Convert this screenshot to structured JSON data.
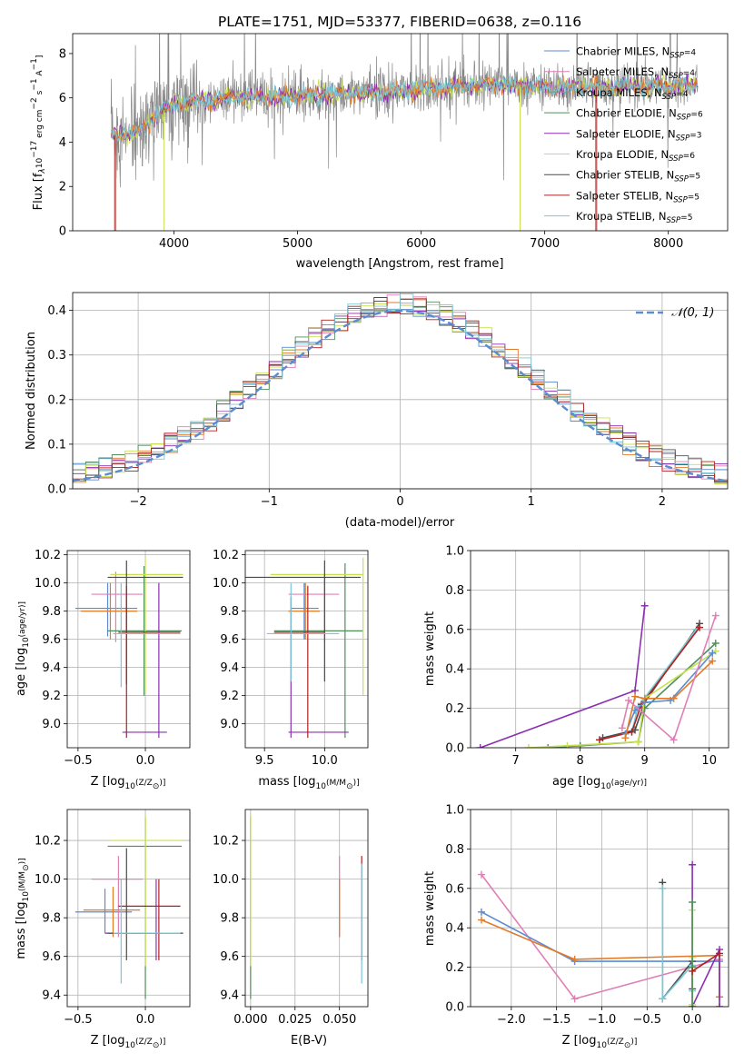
{
  "colors": {
    "chabrier_miles": "#5b8bd0",
    "salpeter_miles": "#e07fb5",
    "kroupa_miles": "#e07b2c",
    "chabrier_elodie": "#4f8f5a",
    "salpeter_elodie": "#8b2fb0",
    "kroupa_elodie": "#c8e04f",
    "chabrier_stelib": "#4a4a4a",
    "salpeter_stelib": "#b02020",
    "kroupa_stelib": "#78c8d8",
    "grid": "#b0b0b0",
    "gauss": "#5b8bd0"
  },
  "chart_data": [
    {
      "id": "spectrum",
      "type": "line",
      "title": "PLATE=1751, MJD=53377, FIBERID=0638, z=0.116",
      "xlabel": "wavelength [Angstrom, rest frame]",
      "ylabel_parts": [
        "Flux [f",
        "λ",
        "10",
        "−17",
        " erg cm",
        "−2",
        " s",
        "−1",
        " A",
        "−1",
        "]"
      ],
      "xlim": [
        3180,
        8480
      ],
      "ylim": [
        0,
        8.9
      ],
      "xticks": [
        4000,
        5000,
        6000,
        7000,
        8000
      ],
      "yticks": [
        0,
        2,
        4,
        6,
        8
      ],
      "x_range": [
        3490,
        8240
      ],
      "continuum": [
        [
          3490,
          4.3
        ],
        [
          3700,
          4.4
        ],
        [
          3800,
          4.9
        ],
        [
          3950,
          5.6
        ],
        [
          4050,
          5.8
        ],
        [
          4500,
          6.0
        ],
        [
          5000,
          6.1
        ],
        [
          5500,
          6.2
        ],
        [
          6000,
          6.4
        ],
        [
          6500,
          6.6
        ],
        [
          7000,
          6.5
        ],
        [
          7500,
          6.5
        ],
        [
          8000,
          6.6
        ],
        [
          8240,
          6.6
        ]
      ],
      "legend": [
        {
          "label": "Chabrier MILES, N",
          "sub": "SSP",
          "tail": "=4",
          "color_key": "chabrier_miles"
        },
        {
          "label": "Salpeter MILES, N",
          "sub": "SSP",
          "tail": "=4",
          "color_key": "salpeter_miles"
        },
        {
          "label": "Kroupa MILES, N",
          "sub": "SSP",
          "tail": "=4",
          "color_key": "kroupa_miles"
        },
        {
          "label": "Chabrier ELODIE, N",
          "sub": "SSP",
          "tail": "=6",
          "color_key": "chabrier_elodie"
        },
        {
          "label": "Salpeter ELODIE, N",
          "sub": "SSP",
          "tail": "=3",
          "color_key": "salpeter_elodie"
        },
        {
          "label": "Kroupa ELODIE, N",
          "sub": "SSP",
          "tail": "=6",
          "color_key": "kroupa_elodie"
        },
        {
          "label": "Chabrier STELIB, N",
          "sub": "SSP",
          "tail": "=5",
          "color_key": "chabrier_stelib"
        },
        {
          "label": "Salpeter STELIB, N",
          "sub": "SSP",
          "tail": "=5",
          "color_key": "salpeter_stelib"
        },
        {
          "label": "Kroupa STELIB, N",
          "sub": "SSP",
          "tail": "=5",
          "color_key": "kroupa_stelib"
        }
      ]
    },
    {
      "id": "residuals",
      "type": "histogram",
      "xlabel": "(data-model)/error",
      "ylabel": "Normed distribution",
      "xlim": [
        -2.5,
        2.5
      ],
      "ylim": [
        0,
        0.44
      ],
      "xticks": [
        -2,
        -1,
        0,
        1,
        2
      ],
      "yticks": [
        0.0,
        0.1,
        0.2,
        0.3,
        0.4
      ],
      "bin_width": 0.1,
      "legend": "𝒩(0, 1)",
      "legend_position": "top-right",
      "grid": true
    },
    {
      "id": "age_vs_Z",
      "type": "errorbar",
      "xlabel_parts": [
        "Z [log",
        "10",
        "(Z/Z",
        "⊙",
        ")]"
      ],
      "ylabel_parts": [
        "age  [log",
        "10",
        "(age/yr)]"
      ],
      "xlim": [
        -0.58,
        0.33
      ],
      "ylim": [
        8.83,
        10.23
      ],
      "xticks": [
        -0.5,
        0.0
      ],
      "yticks": [
        9.0,
        9.2,
        9.4,
        9.6,
        9.8,
        10.0,
        10.2
      ],
      "points": [
        {
          "c": "chabrier_miles",
          "x": -0.28,
          "xl": -0.52,
          "xh": -0.06,
          "y": 9.82,
          "yl": 9.62,
          "yh": 10.0
        },
        {
          "c": "salpeter_miles",
          "x": -0.22,
          "xl": -0.4,
          "xh": -0.02,
          "y": 9.92,
          "yl": 9.58,
          "yh": 10.08
        },
        {
          "c": "kroupa_miles",
          "x": -0.26,
          "xl": -0.48,
          "xh": -0.06,
          "y": 9.8,
          "yl": 9.6,
          "yh": 10.0
        },
        {
          "c": "chabrier_elodie",
          "x": -0.01,
          "xl": -0.28,
          "xh": 0.27,
          "y": 9.66,
          "yl": 9.2,
          "yh": 10.12
        },
        {
          "c": "salpeter_elodie",
          "x": 0.1,
          "xl": -0.17,
          "xh": 0.16,
          "y": 8.94,
          "yl": 8.9,
          "yh": 10.0
        },
        {
          "c": "kroupa_elodie",
          "x": 0.0,
          "xl": -0.26,
          "xh": 0.28,
          "y": 10.06,
          "yl": 9.22,
          "yh": 10.18
        },
        {
          "c": "chabrier_stelib",
          "x": -0.14,
          "xl": -0.28,
          "xh": 0.28,
          "y": 10.04,
          "yl": 9.28,
          "yh": 10.16
        },
        {
          "c": "salpeter_stelib",
          "x": -0.14,
          "xl": -0.2,
          "xh": 0.26,
          "y": 9.65,
          "yl": 8.9,
          "yh": 9.98
        },
        {
          "c": "kroupa_stelib",
          "x": -0.18,
          "xl": -0.24,
          "xh": 0.26,
          "y": 9.64,
          "yl": 9.26,
          "yh": 10.0
        }
      ]
    },
    {
      "id": "age_vs_mass",
      "type": "errorbar",
      "xlabel_parts": [
        "mass [log",
        "10",
        "(M/M",
        "⊙",
        ")]"
      ],
      "xlim": [
        9.34,
        10.36
      ],
      "ylim": [
        8.83,
        10.23
      ],
      "xticks": [
        9.5,
        10.0
      ],
      "yticks": [
        9.0,
        9.2,
        9.4,
        9.6,
        9.8,
        10.0,
        10.2
      ],
      "points": [
        {
          "c": "chabrier_miles",
          "x": 9.83,
          "xl": 9.72,
          "xh": 9.95,
          "y": 9.82,
          "yl": 9.6,
          "yh": 10.0
        },
        {
          "c": "salpeter_miles",
          "x": 10.0,
          "xl": 9.7,
          "xh": 10.12,
          "y": 9.92,
          "yl": 9.58,
          "yh": 10.06
        },
        {
          "c": "kroupa_miles",
          "x": 9.84,
          "xl": 9.7,
          "xh": 9.96,
          "y": 9.8,
          "yl": 9.6,
          "yh": 10.0
        },
        {
          "c": "chabrier_elodie",
          "x": 10.17,
          "xl": 9.58,
          "xh": 10.32,
          "y": 9.66,
          "yl": 8.9,
          "yh": 10.14
        },
        {
          "c": "salpeter_elodie",
          "x": 9.72,
          "xl": 9.7,
          "xh": 10.2,
          "y": 8.94,
          "yl": 8.9,
          "yh": 9.9
        },
        {
          "c": "kroupa_elodie",
          "x": 10.32,
          "xl": 9.55,
          "xh": 10.32,
          "y": 10.06,
          "yl": 9.2,
          "yh": 10.18
        },
        {
          "c": "chabrier_stelib",
          "x": 10.0,
          "xl": 9.3,
          "xh": 10.3,
          "y": 10.04,
          "yl": 9.3,
          "yh": 10.16
        },
        {
          "c": "salpeter_stelib",
          "x": 9.86,
          "xl": 9.58,
          "xh": 10.0,
          "y": 9.65,
          "yl": 8.9,
          "yh": 9.98
        },
        {
          "c": "kroupa_stelib",
          "x": 9.72,
          "xl": 9.52,
          "xh": 10.12,
          "y": 9.64,
          "yl": 9.3,
          "yh": 10.0
        }
      ]
    },
    {
      "id": "weight_vs_age",
      "type": "line",
      "xlabel_parts": [
        "age  [log",
        "10",
        "(age/yr)]"
      ],
      "ylabel": "mass weight",
      "xlim": [
        6.3,
        10.3
      ],
      "ylim": [
        0,
        1.0
      ],
      "xticks": [
        7,
        8,
        9,
        10
      ],
      "yticks": [
        0.0,
        0.2,
        0.4,
        0.6,
        0.8,
        1.0
      ],
      "grid": true,
      "series": [
        {
          "c": "salpeter_elodie",
          "x": [
            6.45,
            8.85,
            9.0
          ],
          "y": [
            0.0,
            0.29,
            0.72
          ]
        },
        {
          "c": "chabrier_stelib",
          "x": [
            8.35,
            8.85,
            9.0,
            9.85
          ],
          "y": [
            0.05,
            0.09,
            0.23,
            0.63
          ]
        },
        {
          "c": "kroupa_stelib",
          "x": [
            8.3,
            8.8,
            8.9,
            9.8
          ],
          "y": [
            0.04,
            0.08,
            0.21,
            0.6
          ]
        },
        {
          "c": "salpeter_stelib",
          "x": [
            8.3,
            8.8,
            8.95,
            9.85
          ],
          "y": [
            0.04,
            0.08,
            0.22,
            0.61
          ]
        },
        {
          "c": "chabrier_elodie",
          "x": [
            7.5,
            8.0,
            8.9,
            9.0,
            10.1
          ],
          "y": [
            0.0,
            0.01,
            0.03,
            0.2,
            0.53
          ]
        },
        {
          "c": "kroupa_elodie",
          "x": [
            7.2,
            7.8,
            8.9,
            9.0,
            10.1
          ],
          "y": [
            0.0,
            0.01,
            0.03,
            0.25,
            0.49
          ]
        },
        {
          "c": "chabrier_miles",
          "x": [
            8.7,
            8.85,
            9.0,
            9.4,
            10.05
          ],
          "y": [
            0.07,
            0.19,
            0.23,
            0.24,
            0.48
          ]
        },
        {
          "c": "kroupa_miles",
          "x": [
            8.7,
            8.85,
            9.0,
            9.45,
            10.05
          ],
          "y": [
            0.05,
            0.26,
            0.25,
            0.25,
            0.44
          ]
        },
        {
          "c": "salpeter_miles",
          "x": [
            8.65,
            8.75,
            9.45,
            10.1
          ],
          "y": [
            0.1,
            0.24,
            0.04,
            0.67
          ]
        }
      ]
    },
    {
      "id": "mass_vs_Z",
      "type": "errorbar",
      "xlabel_parts": [
        "Z [log",
        "10",
        "(Z/Z",
        "⊙",
        ")]"
      ],
      "ylabel_parts": [
        "mass [log",
        "10",
        "(M/M",
        "⊙",
        ")]"
      ],
      "xlim": [
        -0.58,
        0.33
      ],
      "ylim": [
        9.34,
        10.36
      ],
      "xticks": [
        -0.5,
        0.0
      ],
      "yticks": [
        9.4,
        9.6,
        9.8,
        10.0,
        10.2
      ],
      "points": [
        {
          "c": "chabrier_miles",
          "x": -0.3,
          "xl": -0.52,
          "xh": -0.1,
          "y": 9.83,
          "yl": 9.72,
          "yh": 9.95
        },
        {
          "c": "salpeter_miles",
          "x": -0.2,
          "xl": -0.4,
          "xh": -0.02,
          "y": 10.0,
          "yl": 9.7,
          "yh": 10.12
        },
        {
          "c": "kroupa_miles",
          "x": -0.24,
          "xl": -0.46,
          "xh": -0.04,
          "y": 9.84,
          "yl": 9.7,
          "yh": 9.96
        },
        {
          "c": "chabrier_elodie",
          "x": 0.0,
          "xl": -0.28,
          "xh": 0.27,
          "y": 10.17,
          "yl": 9.38,
          "yh": 10.32
        },
        {
          "c": "salpeter_elodie",
          "x": 0.08,
          "xl": -0.3,
          "xh": 0.12,
          "y": 9.72,
          "yl": 9.58,
          "yh": 10.0
        },
        {
          "c": "kroupa_elodie",
          "x": 0.0,
          "xl": -0.26,
          "xh": 0.28,
          "y": 10.2,
          "yl": 9.55,
          "yh": 10.33
        },
        {
          "c": "chabrier_stelib",
          "x": -0.14,
          "xl": -0.28,
          "xh": 0.28,
          "y": 9.72,
          "yl": 9.58,
          "yh": 10.16
        },
        {
          "c": "salpeter_stelib",
          "x": 0.1,
          "xl": -0.2,
          "xh": 0.26,
          "y": 9.86,
          "yl": 9.58,
          "yh": 10.0
        },
        {
          "c": "kroupa_stelib",
          "x": -0.18,
          "xl": -0.24,
          "xh": 0.26,
          "y": 9.72,
          "yl": 9.46,
          "yh": 10.0
        }
      ]
    },
    {
      "id": "mass_vs_ebv",
      "type": "errorbar",
      "xlabel": "E(B-V)",
      "xlim": [
        -0.003,
        0.066
      ],
      "ylim": [
        9.34,
        10.36
      ],
      "xticks": [
        0.0,
        0.025,
        0.05
      ],
      "yticks": [
        9.4,
        9.6,
        9.8,
        10.0,
        10.2
      ],
      "points": [
        {
          "c": "chabrier_elodie",
          "x": 0.0,
          "yl": 9.38,
          "yh": 10.32
        },
        {
          "c": "kroupa_elodie",
          "x": 0.0,
          "yl": 9.55,
          "yh": 10.33
        },
        {
          "c": "salpeter_miles",
          "x": 0.05,
          "yl": 9.7,
          "yh": 10.12
        },
        {
          "c": "kroupa_miles",
          "x": 0.05,
          "yl": 9.7,
          "yh": 10.0
        },
        {
          "c": "salpeter_stelib",
          "x": 0.0625,
          "yl": 9.58,
          "yh": 10.12
        },
        {
          "c": "kroupa_stelib",
          "x": 0.0625,
          "yl": 9.46,
          "yh": 10.08
        }
      ]
    },
    {
      "id": "weight_vs_Z",
      "type": "line",
      "xlabel_parts": [
        "Z [log",
        "10",
        "(Z/Z",
        "⊙",
        ")]"
      ],
      "ylabel": "mass weight",
      "xlim": [
        -2.45,
        0.4
      ],
      "ylim": [
        0,
        1.0
      ],
      "xticks": [
        -2.0,
        -1.5,
        -1.0,
        -0.5,
        0.0
      ],
      "yticks": [
        0.0,
        0.2,
        0.4,
        0.6,
        0.8,
        1.0
      ],
      "grid": true,
      "series": [
        {
          "c": "salpeter_miles",
          "x": [
            -2.33,
            -1.3,
            0.3
          ],
          "y": [
            0.67,
            0.04,
            0.24
          ]
        },
        {
          "c": "chabrier_miles",
          "x": [
            -2.33,
            -1.3,
            0.3,
            0.3
          ],
          "y": [
            0.48,
            0.23,
            0.23,
            0.05
          ]
        },
        {
          "c": "kroupa_miles",
          "x": [
            -2.33,
            -1.3,
            0.3,
            0.3
          ],
          "y": [
            0.44,
            0.24,
            0.26,
            0.05
          ]
        },
        {
          "c": "chabrier_stelib",
          "x": [
            -0.33,
            -0.33,
            0.0,
            0.0
          ],
          "y": [
            0.63,
            0.04,
            0.23,
            0.09
          ]
        },
        {
          "c": "kroupa_stelib",
          "x": [
            -0.33,
            -0.33,
            0.0,
            0.0
          ],
          "y": [
            0.6,
            0.04,
            0.21,
            0.08
          ]
        },
        {
          "c": "salpeter_elodie",
          "x": [
            0.0,
            0.0,
            0.3,
            0.3
          ],
          "y": [
            0.72,
            0.0,
            0.29,
            0.0
          ]
        },
        {
          "c": "kroupa_elodie",
          "x": [
            0.0,
            0.0,
            0.0
          ],
          "y": [
            0.49,
            0.25,
            0.01
          ]
        },
        {
          "c": "chabrier_elodie",
          "x": [
            0.0,
            0.0,
            0.0
          ],
          "y": [
            0.53,
            0.2,
            0.0
          ]
        },
        {
          "c": "salpeter_stelib",
          "x": [
            0.0,
            0.3
          ],
          "y": [
            0.18,
            0.27
          ]
        }
      ]
    }
  ]
}
